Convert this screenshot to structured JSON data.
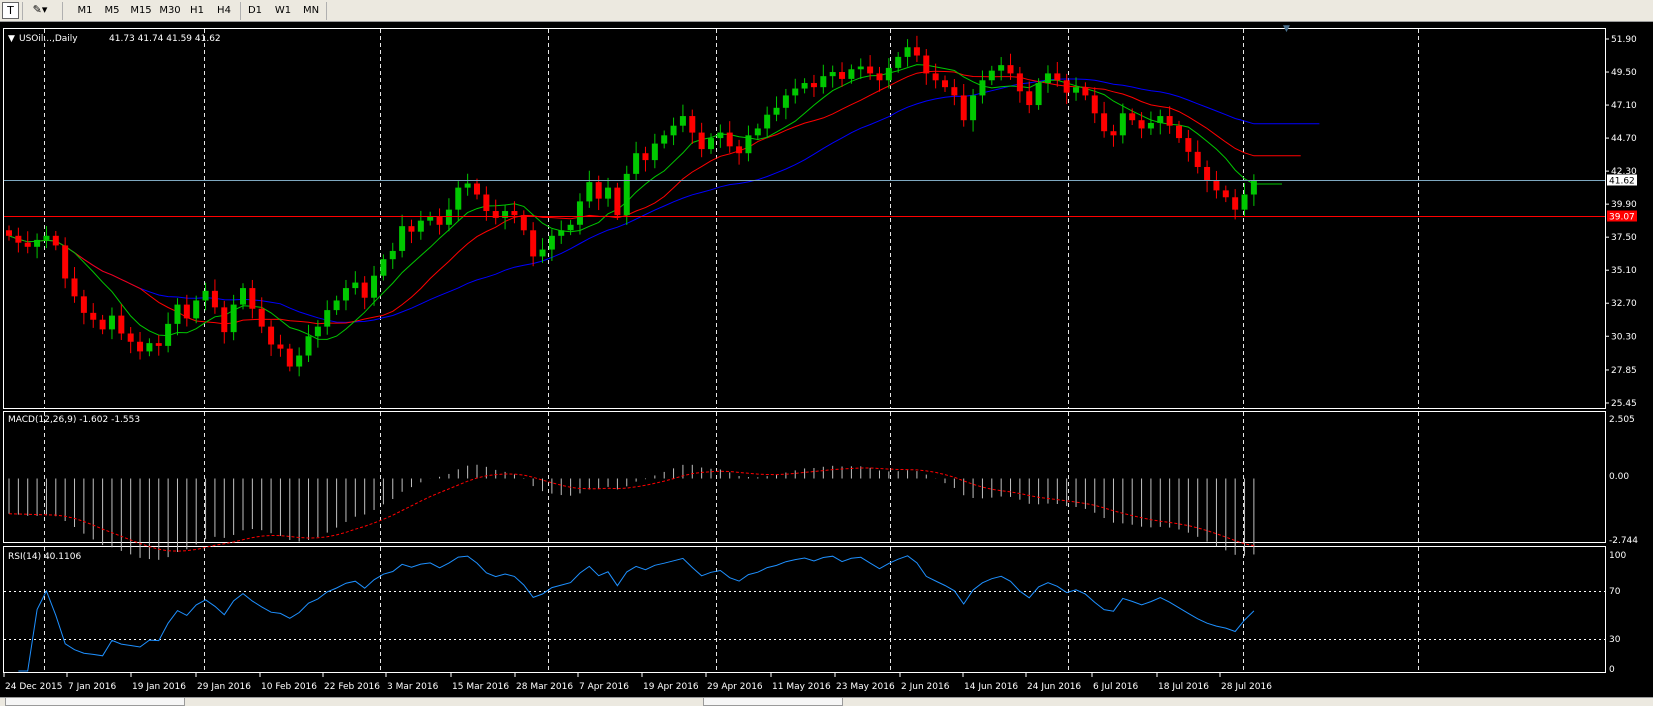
{
  "toolbar": {
    "text_tool": "T",
    "timeframes": [
      "M1",
      "M5",
      "M15",
      "M30",
      "H1",
      "H4",
      "D1",
      "W1",
      "MN"
    ]
  },
  "colors": {
    "background": "#000000",
    "bull": "#00c800",
    "bear": "#ff0000",
    "ma_fast": "#00c800",
    "ma_mid": "#ff0000",
    "ma_slow": "#0000ff",
    "bid_line": "#7ea8c0",
    "ask_line": "#ff0000",
    "macd_hist": "#c0c0c0",
    "macd_signal": "#ff0000",
    "rsi": "#1e90ff",
    "grid": "#ffffff"
  },
  "chart_data": [
    {
      "type": "candlestick",
      "title": "USOil...,Daily",
      "ohlc_label": "41.73 41.74 41.59 41.62",
      "x_tick_labels": [
        "24 Dec 2015",
        "7 Jan 2016",
        "19 Jan 2016",
        "29 Jan 2016",
        "10 Feb 2016",
        "22 Feb 2016",
        "3 Mar 2016",
        "15 Mar 2016",
        "28 Mar 2016",
        "7 Apr 2016",
        "19 Apr 2016",
        "29 Apr 2016",
        "11 May 2016",
        "23 May 2016",
        "2 Jun 2016",
        "14 Jun 2016",
        "24 Jun 2016",
        "6 Jul 2016",
        "18 Jul 2016",
        "28 Jul 2016"
      ],
      "y_ticks": [
        51.9,
        49.5,
        47.1,
        44.7,
        42.3,
        39.9,
        37.5,
        35.1,
        32.7,
        30.3,
        27.85,
        25.45
      ],
      "y_tick_labels": [
        "51.90",
        "49.50",
        "47.10",
        "44.70",
        "42.30",
        "39.90",
        "37.50",
        "35.10",
        "32.70",
        "30.30",
        "27.85",
        "25.45"
      ],
      "ylim": [
        25.45,
        52.6
      ],
      "close": [
        37.6,
        37.1,
        36.8,
        37.3,
        37.6,
        36.9,
        34.5,
        33.2,
        32.0,
        31.5,
        30.8,
        31.8,
        30.5,
        29.9,
        29.2,
        29.8,
        29.6,
        31.2,
        32.6,
        31.6,
        32.9,
        33.6,
        32.4,
        30.6,
        32.6,
        33.8,
        32.3,
        31.0,
        29.7,
        29.4,
        28.1,
        28.9,
        30.3,
        31.0,
        32.2,
        32.9,
        33.8,
        34.2,
        33.1,
        34.7,
        35.9,
        36.5,
        38.3,
        37.9,
        38.7,
        39.0,
        38.4,
        39.5,
        41.1,
        41.4,
        40.6,
        39.4,
        38.9,
        39.4,
        39.1,
        38.0,
        36.1,
        36.6,
        37.6,
        38.0,
        38.4,
        40.1,
        41.5,
        40.3,
        41.1,
        39.1,
        42.1,
        43.6,
        43.1,
        44.3,
        44.9,
        45.6,
        46.3,
        45.1,
        43.9,
        44.7,
        45.1,
        44.1,
        43.6,
        44.9,
        45.4,
        46.4,
        46.9,
        47.8,
        48.3,
        48.7,
        48.4,
        49.2,
        49.5,
        49.0,
        49.7,
        49.9,
        49.4,
        48.9,
        49.8,
        50.6,
        51.3,
        50.7,
        49.4,
        48.9,
        48.4,
        47.8,
        46.0,
        47.8,
        48.9,
        49.6,
        50.0,
        49.4,
        48.1,
        47.1,
        48.7,
        49.4,
        48.9,
        48.0,
        48.4,
        47.8,
        46.5,
        45.2,
        44.9,
        46.5,
        46.0,
        45.4,
        45.8,
        46.3,
        45.6,
        44.7,
        43.7,
        42.6,
        41.6,
        40.9,
        40.4,
        39.5,
        40.6,
        41.6
      ],
      "series": [
        {
          "name": "MA fast",
          "values_hint": "green moving average"
        },
        {
          "name": "MA mid",
          "values_hint": "red moving average"
        },
        {
          "name": "MA slow",
          "values_hint": "blue moving average"
        }
      ],
      "bid_price_label": "41.62",
      "ask_price_label": "39.07",
      "bid_price": 41.62,
      "ask_price": 39.07
    },
    {
      "type": "histogram",
      "title": "MACD(12,26,9) -1.602 -1.553",
      "y_tick_labels": [
        "2.505",
        "0.00",
        "-2.744"
      ],
      "ylim": [
        -2.744,
        2.505
      ]
    },
    {
      "type": "line",
      "title": "RSI(14) 40.1106",
      "y_tick_labels": [
        "100",
        "70",
        "30",
        "0"
      ],
      "ylim": [
        0,
        100
      ],
      "levels": [
        70,
        30
      ]
    }
  ]
}
